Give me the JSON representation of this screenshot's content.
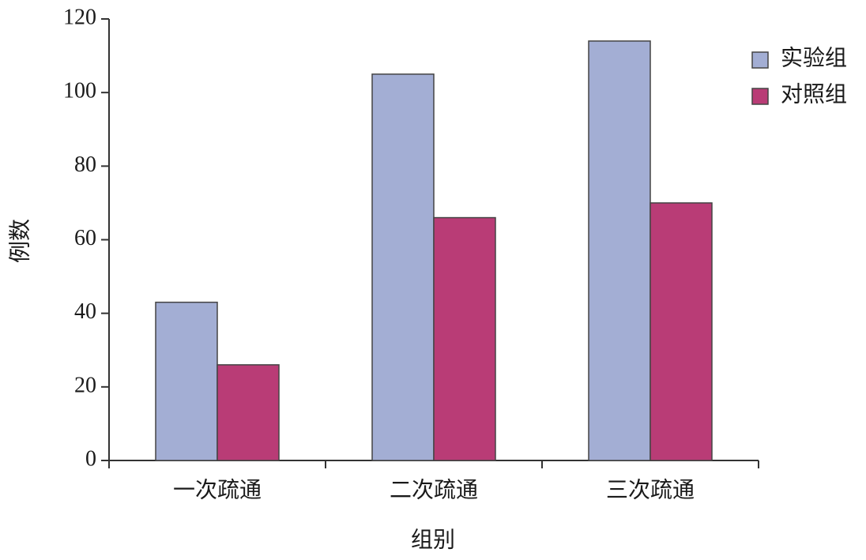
{
  "chart_data": {
    "type": "bar",
    "x_label": "组别",
    "y_label": "例数",
    "categories": [
      "一次疏通",
      "二次疏通",
      "三次疏通"
    ],
    "series": [
      {
        "name": "实验组",
        "color": "#a3aed4",
        "values": [
          43,
          105,
          114
        ]
      },
      {
        "name": "对照组",
        "color": "#b93c76",
        "values": [
          26,
          66,
          70
        ]
      }
    ],
    "ylim": [
      0,
      120
    ],
    "yticks": [
      0,
      20,
      40,
      60,
      80,
      100,
      120
    ],
    "grid": false,
    "legend": "upper right"
  }
}
